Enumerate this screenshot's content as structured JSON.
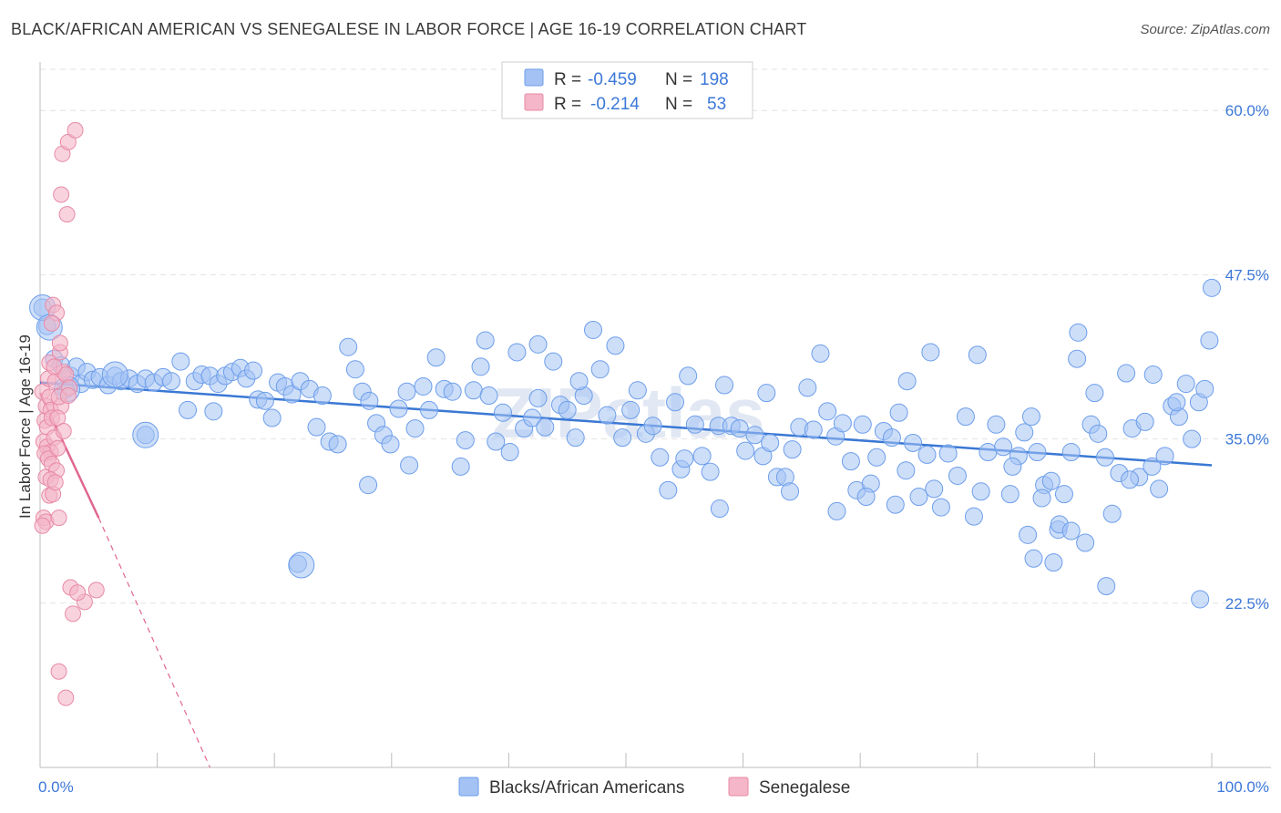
{
  "title": "BLACK/AFRICAN AMERICAN VS SENEGALESE IN LABOR FORCE | AGE 16-19 CORRELATION CHART",
  "source": "Source: ZipAtlas.com",
  "watermark": "ZIPatlas",
  "chart_data": {
    "type": "scatter",
    "ylabel": "In Labor Force | Age 16-19",
    "xlabel": "",
    "xlim": [
      0,
      100
    ],
    "ylim": [
      10,
      63
    ],
    "x_tick_labels": [
      "0.0%",
      "100.0%"
    ],
    "y_ticks": [
      22.5,
      35.0,
      47.5,
      60.0
    ],
    "y_tick_labels": [
      "22.5%",
      "35.0%",
      "47.5%",
      "60.0%"
    ],
    "grid": true,
    "legend": {
      "position": "top-center",
      "entries": [
        {
          "r_label": "R =",
          "r_value": "-0.459",
          "n_label": "N =",
          "n_value": "198",
          "color": "#a4c2f4"
        },
        {
          "r_label": "R =",
          "r_value": "-0.214",
          "n_label": "N =",
          "n_value": "53",
          "color": "#f4b6c8"
        }
      ]
    },
    "series": [
      {
        "name": "Blacks/African Americans",
        "color": "#a4c2f4",
        "edge": "#6d9eeb",
        "trend": {
          "x": [
            0,
            100
          ],
          "y": [
            39.3,
            33.0
          ],
          "color": "#3a78d4"
        },
        "points": [
          [
            0.2,
            45.0
          ],
          [
            0.6,
            43.6
          ],
          [
            1.2,
            41.1
          ],
          [
            1.8,
            40.6
          ],
          [
            2.2,
            38.8
          ],
          [
            2.6,
            39.8
          ],
          [
            3.1,
            40.5
          ],
          [
            3.5,
            39.2
          ],
          [
            4.0,
            40.1
          ],
          [
            4.5,
            39.5
          ],
          [
            5.1,
            39.7
          ],
          [
            5.8,
            39.1
          ],
          [
            6.4,
            39.8
          ],
          [
            6.9,
            39.4
          ],
          [
            7.6,
            39.6
          ],
          [
            8.3,
            39.2
          ],
          [
            9.0,
            39.6
          ],
          [
            9.7,
            39.3
          ],
          [
            10.5,
            39.7
          ],
          [
            11.2,
            39.4
          ],
          [
            12.0,
            40.9
          ],
          [
            12.6,
            37.2
          ],
          [
            13.2,
            39.4
          ],
          [
            13.8,
            39.9
          ],
          [
            14.5,
            39.8
          ],
          [
            14.8,
            37.1
          ],
          [
            15.2,
            39.2
          ],
          [
            15.8,
            39.8
          ],
          [
            16.4,
            40.1
          ],
          [
            17.1,
            40.4
          ],
          [
            17.6,
            39.6
          ],
          [
            18.2,
            40.2
          ],
          [
            18.6,
            38.0
          ],
          [
            19.2,
            37.9
          ],
          [
            19.8,
            36.6
          ],
          [
            20.3,
            39.3
          ],
          [
            20.9,
            39.0
          ],
          [
            21.5,
            38.4
          ],
          [
            22.2,
            39.4
          ],
          [
            23.0,
            38.8
          ],
          [
            23.6,
            35.9
          ],
          [
            24.1,
            38.3
          ],
          [
            24.7,
            34.8
          ],
          [
            25.4,
            34.6
          ],
          [
            26.3,
            42.0
          ],
          [
            26.9,
            40.3
          ],
          [
            27.5,
            38.6
          ],
          [
            28.1,
            37.9
          ],
          [
            28.7,
            36.2
          ],
          [
            29.3,
            35.3
          ],
          [
            29.9,
            34.6
          ],
          [
            30.6,
            37.3
          ],
          [
            31.3,
            38.6
          ],
          [
            32.0,
            35.8
          ],
          [
            32.7,
            39.0
          ],
          [
            33.2,
            37.2
          ],
          [
            33.8,
            41.2
          ],
          [
            34.5,
            38.8
          ],
          [
            35.2,
            38.6
          ],
          [
            35.9,
            32.9
          ],
          [
            36.3,
            34.9
          ],
          [
            37.0,
            38.7
          ],
          [
            37.6,
            40.5
          ],
          [
            38.3,
            38.3
          ],
          [
            38.9,
            34.8
          ],
          [
            39.5,
            37.0
          ],
          [
            40.1,
            34.0
          ],
          [
            40.7,
            41.6
          ],
          [
            41.3,
            35.8
          ],
          [
            42.0,
            36.6
          ],
          [
            42.5,
            38.1
          ],
          [
            43.1,
            35.9
          ],
          [
            43.8,
            40.9
          ],
          [
            44.4,
            37.6
          ],
          [
            45.0,
            37.2
          ],
          [
            45.7,
            35.1
          ],
          [
            46.4,
            38.3
          ],
          [
            47.2,
            43.3
          ],
          [
            47.8,
            40.3
          ],
          [
            48.4,
            36.8
          ],
          [
            49.1,
            42.1
          ],
          [
            49.7,
            35.1
          ],
          [
            50.4,
            37.2
          ],
          [
            51.0,
            38.7
          ],
          [
            51.7,
            35.4
          ],
          [
            52.3,
            36.0
          ],
          [
            52.9,
            33.6
          ],
          [
            53.6,
            31.1
          ],
          [
            54.2,
            37.8
          ],
          [
            54.7,
            32.7
          ],
          [
            55.3,
            39.8
          ],
          [
            55.9,
            36.1
          ],
          [
            56.5,
            33.7
          ],
          [
            57.2,
            32.5
          ],
          [
            57.9,
            36.0
          ],
          [
            58.4,
            39.1
          ],
          [
            59.0,
            36.0
          ],
          [
            59.7,
            35.8
          ],
          [
            60.2,
            34.1
          ],
          [
            61.0,
            35.3
          ],
          [
            61.7,
            33.7
          ],
          [
            62.3,
            34.7
          ],
          [
            62.9,
            32.1
          ],
          [
            63.6,
            32.1
          ],
          [
            64.2,
            34.2
          ],
          [
            64.8,
            35.9
          ],
          [
            65.5,
            38.9
          ],
          [
            66.0,
            35.7
          ],
          [
            66.6,
            41.5
          ],
          [
            67.2,
            37.1
          ],
          [
            67.9,
            35.2
          ],
          [
            68.5,
            36.2
          ],
          [
            69.2,
            33.3
          ],
          [
            69.7,
            31.1
          ],
          [
            70.2,
            36.1
          ],
          [
            70.9,
            31.6
          ],
          [
            71.4,
            33.6
          ],
          [
            72.0,
            35.6
          ],
          [
            72.7,
            35.1
          ],
          [
            73.3,
            37.0
          ],
          [
            73.9,
            32.6
          ],
          [
            74.5,
            34.7
          ],
          [
            75.0,
            30.6
          ],
          [
            75.7,
            33.8
          ],
          [
            76.3,
            31.2
          ],
          [
            76.9,
            29.8
          ],
          [
            77.5,
            33.9
          ],
          [
            78.3,
            32.2
          ],
          [
            79.0,
            36.7
          ],
          [
            79.7,
            29.1
          ],
          [
            80.3,
            31.0
          ],
          [
            80.9,
            34.0
          ],
          [
            81.6,
            36.1
          ],
          [
            82.2,
            34.4
          ],
          [
            82.8,
            30.8
          ],
          [
            83.5,
            33.7
          ],
          [
            84.0,
            35.5
          ],
          [
            84.6,
            36.7
          ],
          [
            85.1,
            34.0
          ],
          [
            85.7,
            31.5
          ],
          [
            86.3,
            31.8
          ],
          [
            86.9,
            28.1
          ],
          [
            87.4,
            30.8
          ],
          [
            88.0,
            34.0
          ],
          [
            88.6,
            43.1
          ],
          [
            89.2,
            27.1
          ],
          [
            89.7,
            36.1
          ],
          [
            90.3,
            35.4
          ],
          [
            90.9,
            33.6
          ],
          [
            91.5,
            29.3
          ],
          [
            92.1,
            32.4
          ],
          [
            92.7,
            40.0
          ],
          [
            93.2,
            35.8
          ],
          [
            93.8,
            32.1
          ],
          [
            94.3,
            36.3
          ],
          [
            94.9,
            32.9
          ],
          [
            95.5,
            31.2
          ],
          [
            96.0,
            33.7
          ],
          [
            96.6,
            37.5
          ],
          [
            97.2,
            36.7
          ],
          [
            97.8,
            39.2
          ],
          [
            98.3,
            35.0
          ],
          [
            98.9,
            37.8
          ],
          [
            99.4,
            38.8
          ],
          [
            99.8,
            42.5
          ],
          [
            100.0,
            46.5
          ],
          [
            64.0,
            31.0
          ],
          [
            80.0,
            41.4
          ],
          [
            73.0,
            30.0
          ],
          [
            22.0,
            25.5
          ],
          [
            87.0,
            28.5
          ],
          [
            55.0,
            33.5
          ],
          [
            88.5,
            41.1
          ],
          [
            91.0,
            23.8
          ],
          [
            99.0,
            22.8
          ],
          [
            85.5,
            30.5
          ],
          [
            76.0,
            41.6
          ],
          [
            46.0,
            39.4
          ],
          [
            38.0,
            42.5
          ],
          [
            28.0,
            31.5
          ],
          [
            31.5,
            33.0
          ],
          [
            58.0,
            29.7
          ],
          [
            62.0,
            38.5
          ],
          [
            68.0,
            29.5
          ],
          [
            70.5,
            30.6
          ],
          [
            42.5,
            42.2
          ],
          [
            74.0,
            39.4
          ],
          [
            83.0,
            32.9
          ],
          [
            90.0,
            38.5
          ],
          [
            93.0,
            31.9
          ],
          [
            95.0,
            39.9
          ],
          [
            97.0,
            37.8
          ],
          [
            88.0,
            28.0
          ],
          [
            86.5,
            25.6
          ],
          [
            84.3,
            27.7
          ],
          [
            84.8,
            25.9
          ],
          [
            9.0,
            35.3
          ]
        ],
        "big_points": [
          [
            0.2,
            45.0
          ],
          [
            0.8,
            43.5
          ],
          [
            2.3,
            38.8
          ],
          [
            6.4,
            39.9
          ],
          [
            9.0,
            35.3
          ],
          [
            22.3,
            25.4
          ]
        ]
      },
      {
        "name": "Senegalese",
        "color": "#f4b6c8",
        "edge": "#e88aa6",
        "trend": {
          "x": [
            0,
            5.0
          ],
          "y": [
            38.5,
            29.0
          ],
          "color": "#e06690"
        },
        "trend_ext": {
          "x": [
            5.0,
            14.5
          ],
          "y": [
            29.0,
            10.0
          ]
        },
        "points": [
          [
            0.2,
            38.6
          ],
          [
            0.4,
            36.4
          ],
          [
            0.5,
            37.5
          ],
          [
            0.6,
            35.9
          ],
          [
            0.7,
            39.6
          ],
          [
            0.8,
            38.2
          ],
          [
            0.9,
            37.2
          ],
          [
            1.0,
            36.6
          ],
          [
            0.3,
            34.8
          ],
          [
            0.6,
            34.4
          ],
          [
            0.9,
            34.0
          ],
          [
            1.2,
            35.1
          ],
          [
            0.4,
            33.9
          ],
          [
            0.7,
            33.5
          ],
          [
            1.0,
            33.1
          ],
          [
            0.5,
            32.1
          ],
          [
            0.8,
            30.7
          ],
          [
            1.1,
            30.8
          ],
          [
            0.3,
            29.0
          ],
          [
            0.5,
            28.7
          ],
          [
            0.2,
            28.4
          ],
          [
            1.4,
            32.6
          ],
          [
            1.8,
            37.5
          ],
          [
            1.5,
            36.6
          ],
          [
            1.3,
            39.4
          ],
          [
            1.6,
            38.2
          ],
          [
            2.0,
            40.1
          ],
          [
            1.7,
            41.6
          ],
          [
            2.2,
            39.9
          ],
          [
            2.5,
            38.9
          ],
          [
            1.1,
            45.2
          ],
          [
            1.4,
            44.6
          ],
          [
            1.7,
            42.3
          ],
          [
            1.0,
            43.8
          ],
          [
            0.8,
            40.8
          ],
          [
            1.2,
            40.5
          ],
          [
            2.4,
            38.3
          ],
          [
            1.5,
            34.3
          ],
          [
            2.0,
            35.6
          ],
          [
            0.9,
            31.9
          ],
          [
            1.3,
            31.7
          ],
          [
            1.6,
            29.0
          ],
          [
            2.6,
            23.7
          ],
          [
            3.8,
            22.6
          ],
          [
            4.8,
            23.5
          ],
          [
            2.8,
            21.7
          ],
          [
            3.2,
            23.3
          ],
          [
            1.6,
            17.3
          ],
          [
            2.2,
            15.3
          ],
          [
            1.8,
            53.6
          ],
          [
            2.3,
            52.1
          ],
          [
            1.9,
            56.7
          ],
          [
            2.4,
            57.6
          ],
          [
            3.0,
            58.5
          ]
        ]
      }
    ]
  },
  "bottom_legend": [
    {
      "label": "Blacks/African Americans",
      "color": "#a4c2f4"
    },
    {
      "label": "Senegalese",
      "color": "#f4b6c8"
    }
  ]
}
